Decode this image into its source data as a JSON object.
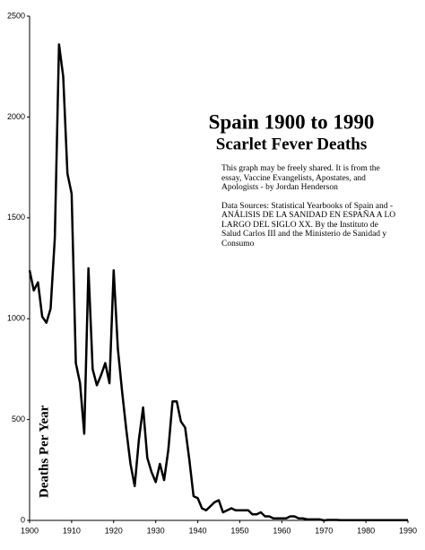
{
  "chart_data": {
    "type": "line",
    "title": "Spain 1900 to 1990",
    "subtitle": "Scarlet Fever Deaths",
    "notes": [
      "This graph may be freely shared. It is from the essay, Vaccine Evangelists, Apostates, and Apologists - by Jordan Henderson",
      "Data Sources: Statistical Yearbooks of Spain and - ANÁLISIS DE LA SANIDAD EN ESPAÑA A LO LARGO DEL SIGLO XX. By the Instituto de Salud Carlos III and the Ministerio de Sanidad y Consumo"
    ],
    "y_label": "Deaths Per Year",
    "x": [
      1900,
      1901,
      1902,
      1903,
      1904,
      1905,
      1906,
      1907,
      1908,
      1909,
      1910,
      1911,
      1912,
      1913,
      1914,
      1915,
      1916,
      1917,
      1918,
      1919,
      1920,
      1921,
      1922,
      1923,
      1924,
      1925,
      1926,
      1927,
      1928,
      1929,
      1930,
      1931,
      1932,
      1933,
      1934,
      1935,
      1936,
      1937,
      1938,
      1939,
      1940,
      1941,
      1942,
      1943,
      1944,
      1945,
      1946,
      1947,
      1948,
      1949,
      1950,
      1951,
      1952,
      1953,
      1954,
      1955,
      1956,
      1957,
      1958,
      1959,
      1960,
      1961,
      1962,
      1963,
      1964,
      1965,
      1966,
      1967,
      1968,
      1969,
      1970,
      1971,
      1972,
      1973,
      1974,
      1975,
      1976,
      1977,
      1978,
      1979,
      1980,
      1981,
      1982,
      1983,
      1984,
      1985,
      1986,
      1987,
      1988,
      1989,
      1990
    ],
    "series": [
      {
        "name": "Scarlet Fever Deaths",
        "color": "#000000",
        "values": [
          1240,
          1140,
          1180,
          1010,
          980,
          1050,
          1400,
          2360,
          2200,
          1720,
          1620,
          780,
          680,
          430,
          1250,
          750,
          670,
          720,
          780,
          680,
          1240,
          850,
          640,
          450,
          280,
          170,
          400,
          560,
          310,
          240,
          190,
          280,
          200,
          350,
          590,
          590,
          490,
          460,
          300,
          120,
          110,
          60,
          50,
          70,
          90,
          100,
          40,
          50,
          60,
          50,
          50,
          50,
          50,
          30,
          30,
          40,
          20,
          20,
          10,
          10,
          10,
          10,
          20,
          20,
          10,
          10,
          5,
          5,
          5,
          5,
          0,
          2,
          2,
          2,
          1,
          1,
          1,
          1,
          1,
          1,
          1,
          1,
          1,
          1,
          1,
          1,
          1,
          1,
          1,
          1,
          1
        ]
      }
    ],
    "xlim": [
      1900,
      1990
    ],
    "xticks": [
      1900,
      1910,
      1920,
      1930,
      1940,
      1950,
      1960,
      1970,
      1980,
      1990
    ],
    "ylim": [
      0,
      2500
    ],
    "yticks": [
      0,
      500,
      1000,
      1500,
      2000,
      2500
    ],
    "grid": false
  }
}
